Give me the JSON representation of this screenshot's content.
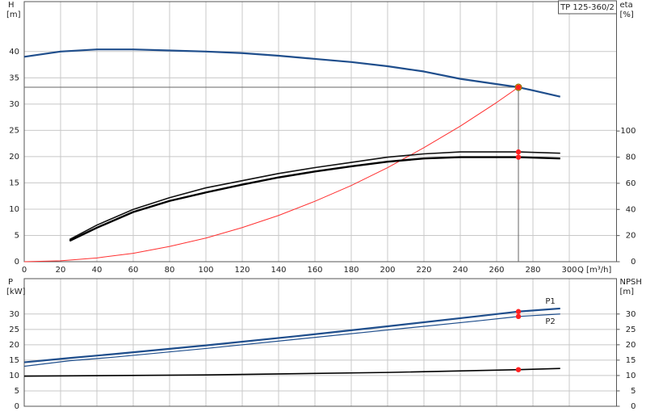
{
  "chart_data": [
    {
      "type": "line",
      "title": "TP 125-360/2",
      "y_label": "H",
      "y_unit": "[m]",
      "y2_label": "eta",
      "y2_unit": "[%]",
      "x_label": "Q [m³/h]",
      "xlim": [
        0,
        326
      ],
      "xticks": [
        0,
        20,
        40,
        60,
        80,
        100,
        120,
        140,
        160,
        180,
        200,
        220,
        240,
        260,
        280,
        300
      ],
      "xtick_labels": true,
      "ylim": [
        0,
        49.5
      ],
      "yticks": [
        0,
        5,
        10,
        15,
        20,
        25,
        30,
        35,
        40
      ],
      "y2lim": [
        0,
        199
      ],
      "y2ticks": [
        0,
        20,
        40,
        60,
        80,
        100
      ],
      "grid": true,
      "duty_flow": 272,
      "duty_marker_color": "#ff2020",
      "series": [
        {
          "color": "#1f4e8c",
          "width": 2.2,
          "marker_color": "#ffe000",
          "duty_lines": true,
          "x": [
            0,
            20,
            40,
            60,
            80,
            100,
            120,
            140,
            160,
            180,
            200,
            220,
            240,
            260,
            272,
            280,
            295
          ],
          "values": [
            39,
            40,
            40.4,
            40.4,
            40.2,
            40,
            39.7,
            39.2,
            38.6,
            38,
            37.2,
            36.2,
            34.8,
            33.8,
            33.2,
            32.6,
            31.4
          ]
        },
        {
          "color": "#ff3030",
          "width": 1,
          "x": [
            0,
            20,
            40,
            60,
            80,
            100,
            120,
            140,
            160,
            180,
            200,
            220,
            240,
            260,
            272
          ],
          "values": [
            0,
            0.18,
            0.72,
            1.6,
            2.9,
            4.5,
            6.5,
            8.8,
            11.5,
            14.5,
            17.9,
            21.7,
            25.8,
            30.3,
            33.2
          ]
        },
        {
          "color": "#111111",
          "width": 1.6,
          "axis": "y2",
          "x": [
            25,
            40,
            60,
            80,
            100,
            120,
            140,
            160,
            180,
            200,
            220,
            240,
            260,
            272,
            295
          ],
          "values": [
            17,
            28,
            40,
            49,
            56.5,
            62,
            67.5,
            72,
            76,
            80,
            82.5,
            84,
            84,
            84,
            83
          ]
        },
        {
          "color": "#000000",
          "width": 2.4,
          "axis": "y2",
          "x": [
            25,
            40,
            60,
            80,
            100,
            120,
            140,
            160,
            180,
            200,
            220,
            240,
            260,
            272,
            295
          ],
          "values": [
            16,
            26,
            38,
            46.5,
            53,
            59,
            64.5,
            69,
            73,
            76.5,
            79,
            80,
            80,
            80,
            79
          ]
        }
      ]
    },
    {
      "type": "line",
      "y_label": "P",
      "y_unit": "[kW]",
      "y2_label": "NPSH",
      "y2_unit": "[m]",
      "xlim": [
        0,
        326
      ],
      "xticks": [
        0,
        20,
        40,
        60,
        80,
        100,
        120,
        140,
        160,
        180,
        200,
        220,
        240,
        260,
        280,
        300
      ],
      "xtick_labels": false,
      "ylim": [
        0,
        41.5
      ],
      "yticks": [
        0,
        5,
        10,
        15,
        20,
        25,
        30
      ],
      "y2lim": [
        0,
        41.5
      ],
      "y2ticks": [
        0,
        5,
        10,
        15,
        20,
        25,
        30
      ],
      "grid": true,
      "duty_flow": 272,
      "duty_marker_color": "#ff2020",
      "series": [
        {
          "name": "P1",
          "color": "#1f4e8c",
          "width": 2.2,
          "x": [
            0,
            25,
            50,
            100,
            150,
            200,
            250,
            272,
            295
          ],
          "values": [
            14.3,
            15.7,
            17,
            19.8,
            22.8,
            26,
            29.3,
            30.8,
            31.8
          ]
        },
        {
          "name": "P2",
          "color": "#1f4e8c",
          "width": 1.2,
          "x": [
            0,
            25,
            50,
            100,
            150,
            200,
            250,
            272,
            295
          ],
          "values": [
            13,
            14.8,
            16,
            18.8,
            21.8,
            24.8,
            27.8,
            29.2,
            30
          ]
        },
        {
          "color": "#000000",
          "width": 1.6,
          "axis": "y2",
          "x": [
            0,
            100,
            200,
            272,
            295
          ],
          "values": [
            9.8,
            10.2,
            11,
            11.9,
            12.3
          ]
        }
      ]
    }
  ]
}
